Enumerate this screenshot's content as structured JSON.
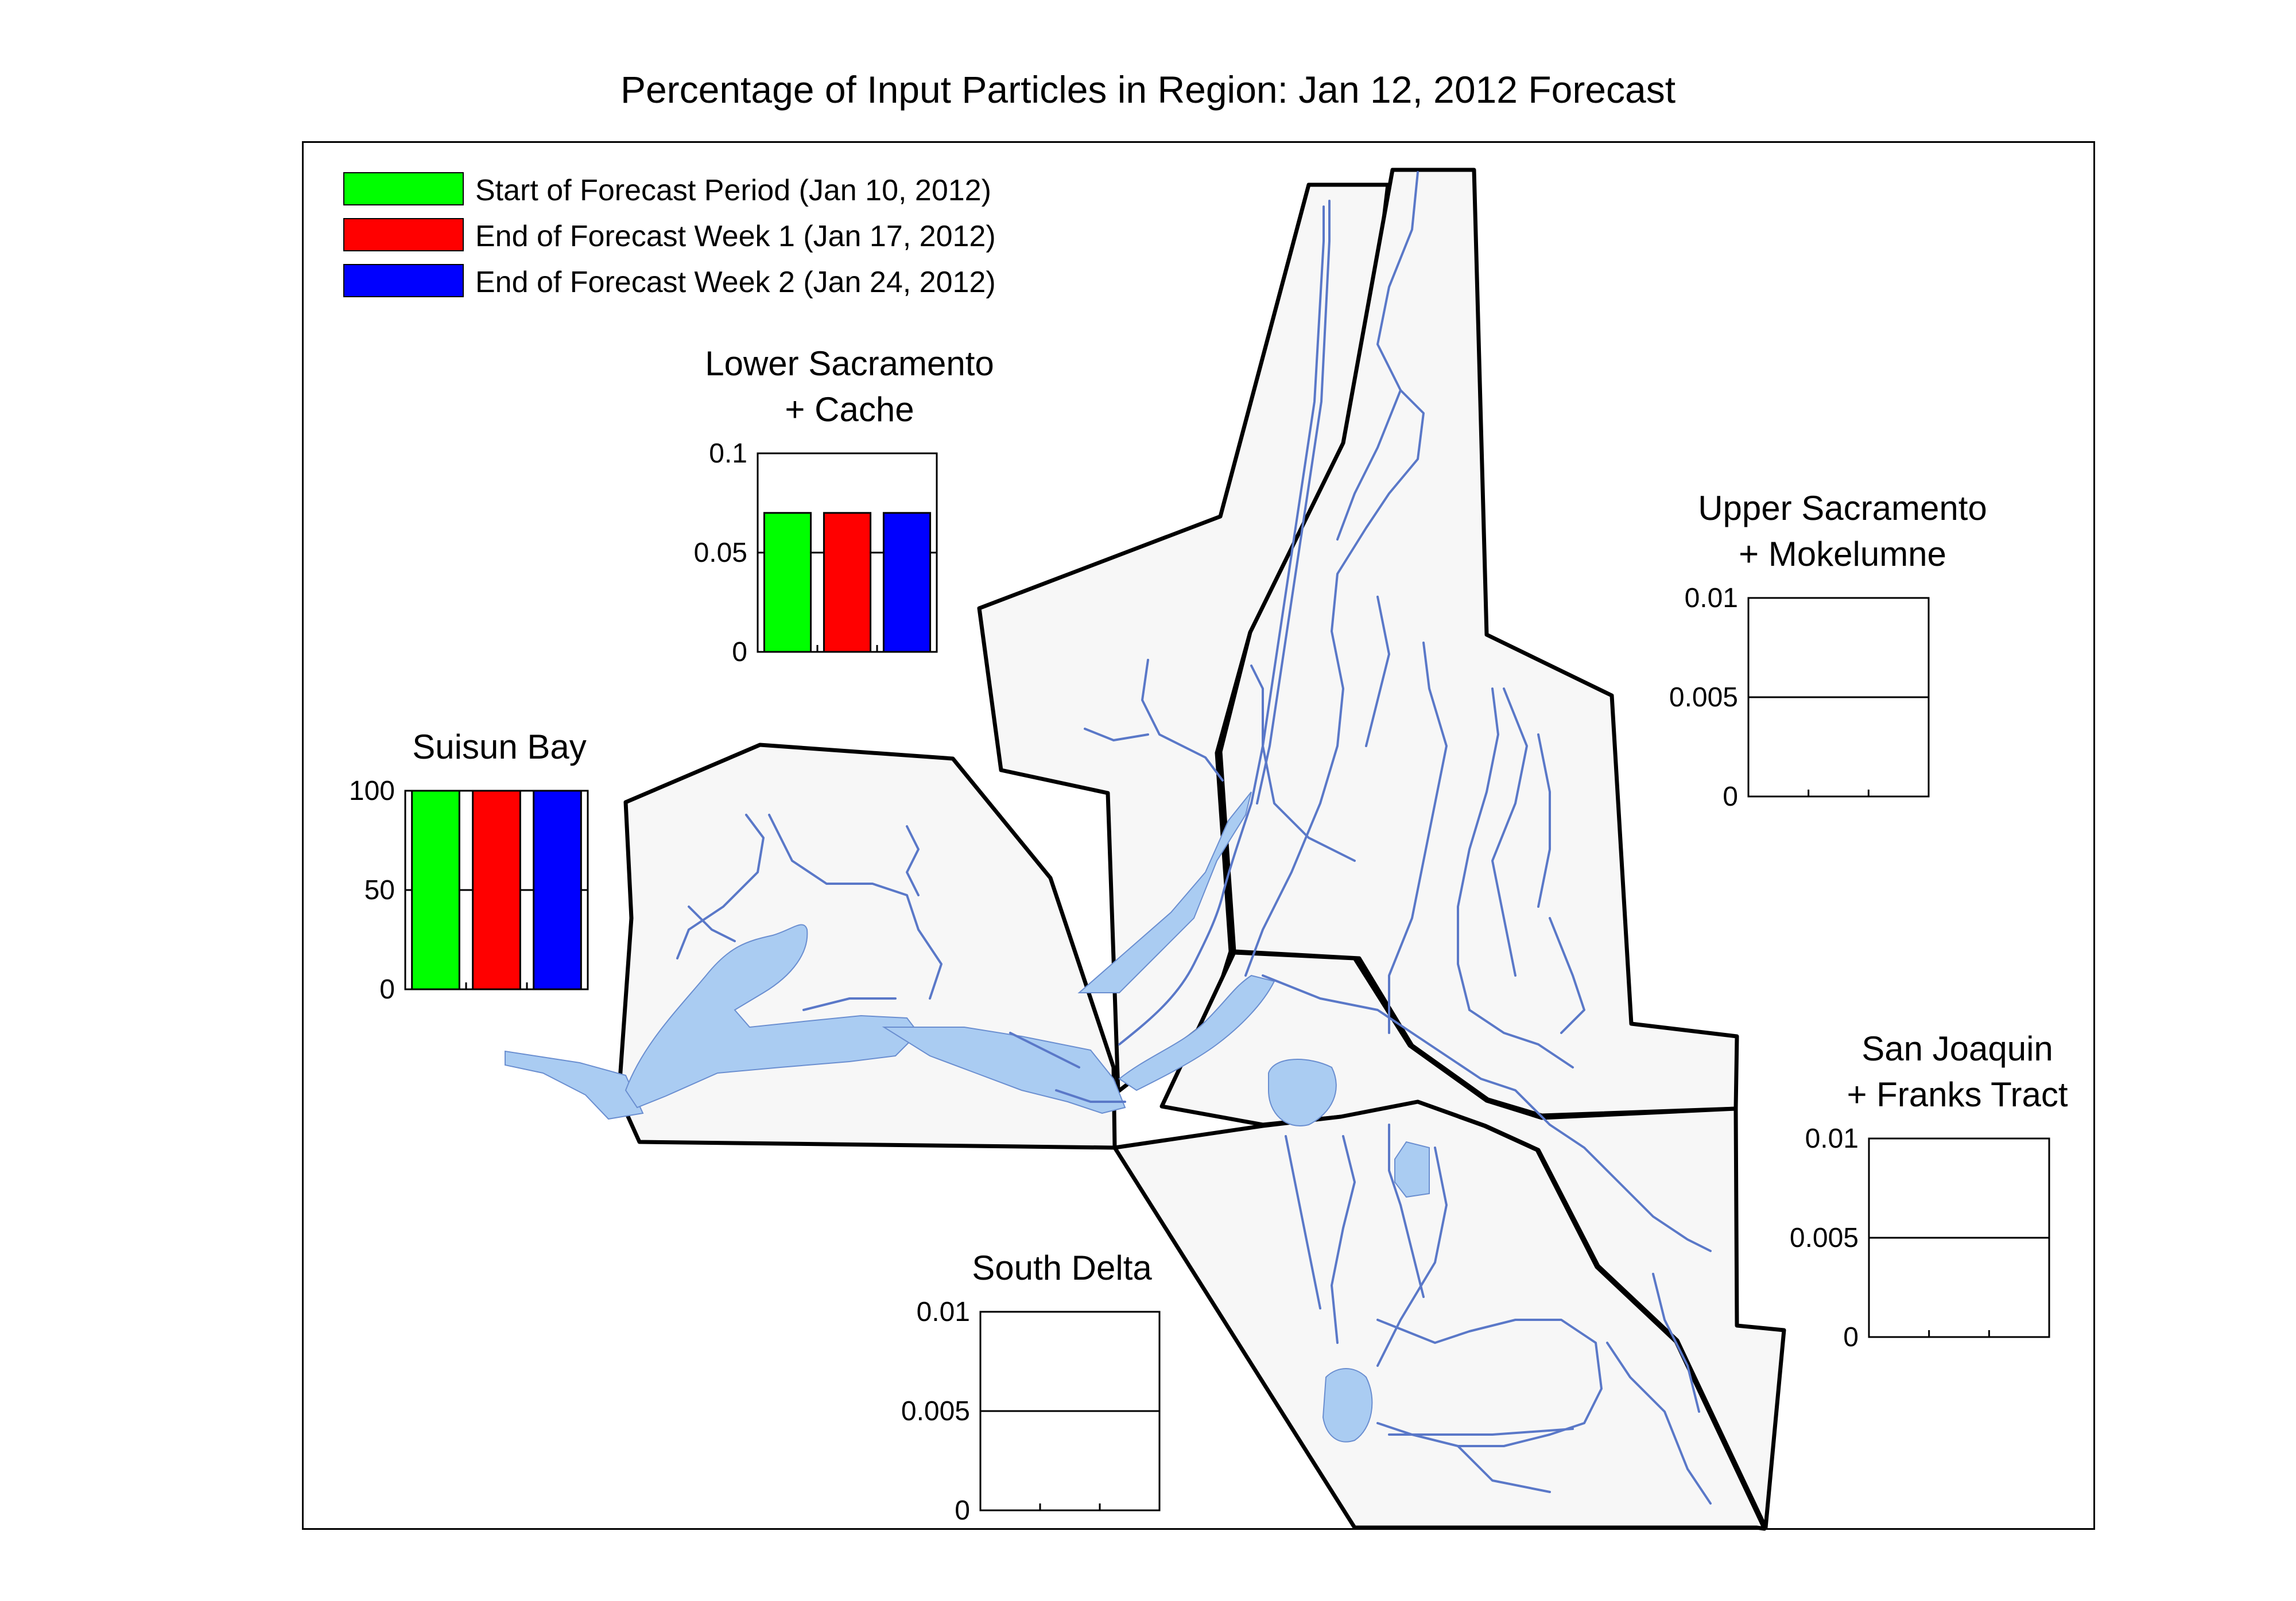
{
  "title": "Percentage of Input Particles in Region: Jan 12, 2012 Forecast",
  "colors": {
    "start": "#00ff00",
    "week1": "#ff0000",
    "week2": "#0000ff",
    "water": "#aaccf2",
    "channel": "#5a78c8",
    "region_fill": "#f7f7f7"
  },
  "legend": [
    {
      "label": "Start of Forecast Period (Jan 10, 2012)",
      "color": "#00ff00"
    },
    {
      "label": "End of Forecast Week 1 (Jan 17, 2012)",
      "color": "#ff0000"
    },
    {
      "label": "End of Forecast Week 2 (Jan 24, 2012)",
      "color": "#0000ff"
    }
  ],
  "chart_data": [
    {
      "type": "bar",
      "title": "Lower Sacramento\n+ Cache",
      "title_lines": [
        "Lower Sacramento",
        "+ Cache"
      ],
      "categories": [
        "Start of Forecast Period (Jan 10, 2012)",
        "End of Forecast Week 1 (Jan 17, 2012)",
        "End of Forecast Week 2 (Jan 24, 2012)"
      ],
      "values": [
        0.07,
        0.07,
        0.07
      ],
      "ylim": [
        0,
        0.1
      ],
      "yticks": [
        "0",
        "0.05",
        "0.1"
      ],
      "grid": "midline"
    },
    {
      "type": "bar",
      "title": "Suisun Bay",
      "title_lines": [
        "Suisun Bay"
      ],
      "categories": [
        "Start of Forecast Period (Jan 10, 2012)",
        "End of Forecast Week 1 (Jan 17, 2012)",
        "End of Forecast Week 2 (Jan 24, 2012)"
      ],
      "values": [
        100,
        100,
        100
      ],
      "ylim": [
        0,
        100
      ],
      "yticks": [
        "0",
        "50",
        "100"
      ],
      "grid": "midline"
    },
    {
      "type": "bar",
      "title": "Upper Sacramento\n+ Mokelumne",
      "title_lines": [
        "Upper Sacramento",
        "+ Mokelumne"
      ],
      "categories": [
        "Start of Forecast Period (Jan 10, 2012)",
        "End of Forecast Week 1 (Jan 17, 2012)",
        "End of Forecast Week 2 (Jan 24, 2012)"
      ],
      "values": [
        0,
        0,
        0
      ],
      "ylim": [
        0,
        0.01
      ],
      "yticks": [
        "0",
        "0.005",
        "0.01"
      ],
      "grid": "midline"
    },
    {
      "type": "bar",
      "title": "San Joaquin\n+ Franks Tract",
      "title_lines": [
        "San Joaquin",
        "+ Franks Tract"
      ],
      "categories": [
        "Start of Forecast Period (Jan 10, 2012)",
        "End of Forecast Week 1 (Jan 17, 2012)",
        "End of Forecast Week 2 (Jan 24, 2012)"
      ],
      "values": [
        0,
        0,
        0
      ],
      "ylim": [
        0,
        0.01
      ],
      "yticks": [
        "0",
        "0.005",
        "0.01"
      ],
      "grid": "midline"
    },
    {
      "type": "bar",
      "title": "South Delta",
      "title_lines": [
        "South Delta"
      ],
      "categories": [
        "Start of Forecast Period (Jan 10, 2012)",
        "End of Forecast Week 1 (Jan 17, 2012)",
        "End of Forecast Week 2 (Jan 24, 2012)"
      ],
      "values": [
        0,
        0,
        0
      ],
      "ylim": [
        0,
        0.01
      ],
      "yticks": [
        "0",
        "0.005",
        "0.01"
      ],
      "grid": "midline"
    }
  ]
}
